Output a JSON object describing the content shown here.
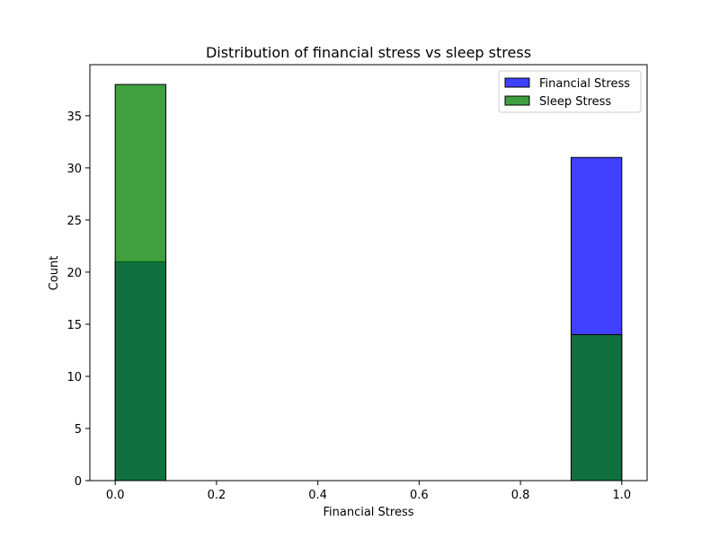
{
  "chart_data": {
    "type": "bar",
    "title": "Distribution of financial stress vs sleep stress",
    "xlabel": "Financial Stress",
    "ylabel": "Count",
    "xlim": [
      -0.05,
      1.05
    ],
    "ylim": [
      0,
      39.9
    ],
    "xticks": [
      0.0,
      0.2,
      0.4,
      0.6,
      0.8,
      1.0
    ],
    "xtick_labels": [
      "0.0",
      "0.2",
      "0.4",
      "0.6",
      "0.8",
      "1.0"
    ],
    "yticks": [
      0,
      5,
      10,
      15,
      20,
      25,
      30,
      35
    ],
    "ytick_labels": [
      "0",
      "5",
      "10",
      "15",
      "20",
      "25",
      "30",
      "35"
    ],
    "grid": false,
    "legend_position": "top-right",
    "series": [
      {
        "name": "Financial Stress",
        "color": "#0000ff",
        "bins": [
          {
            "x0": 0.0,
            "x1": 0.1,
            "count": 21
          },
          {
            "x0": 0.9,
            "x1": 1.0,
            "count": 31
          }
        ]
      },
      {
        "name": "Sleep Stress",
        "color": "#008000",
        "bins": [
          {
            "x0": 0.0,
            "x1": 0.1,
            "count": 38
          },
          {
            "x0": 0.9,
            "x1": 1.0,
            "count": 14
          }
        ]
      }
    ]
  }
}
